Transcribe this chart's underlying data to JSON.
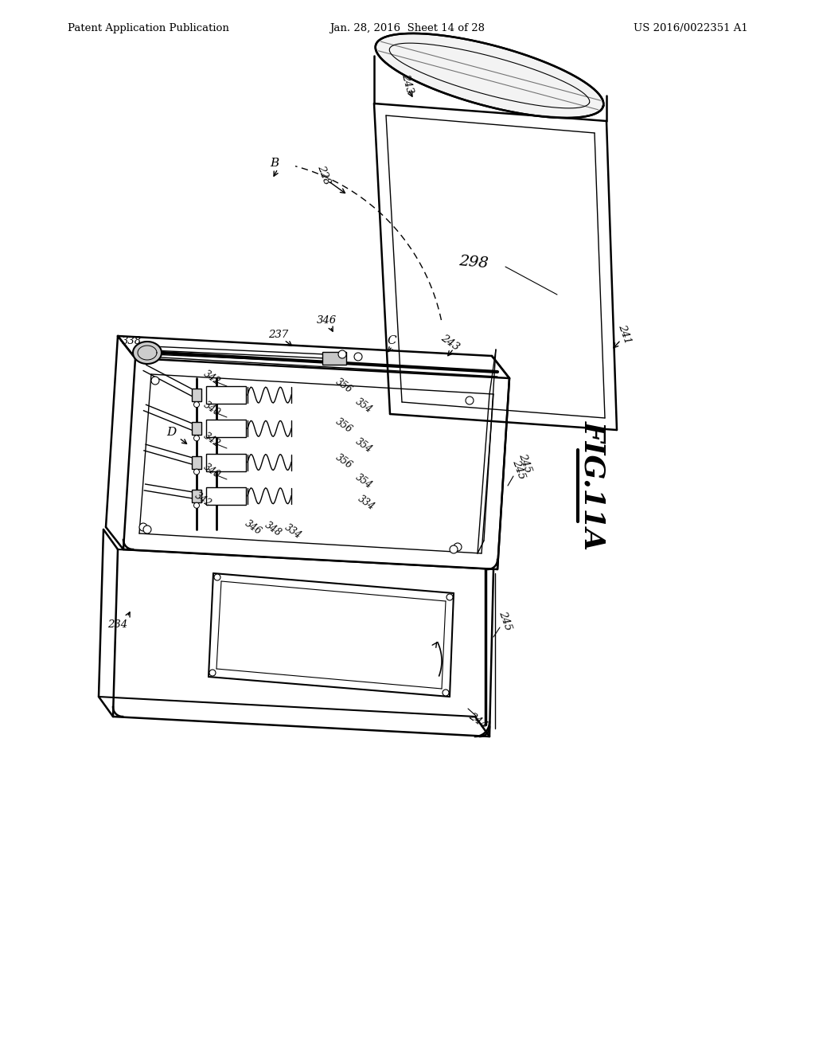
{
  "background_color": "#ffffff",
  "header_left": "Patent Application Publication",
  "header_center": "Jan. 28, 2016  Sheet 14 of 28",
  "header_right": "US 2016/0022351 A1",
  "fig_label": "FIG.11A"
}
